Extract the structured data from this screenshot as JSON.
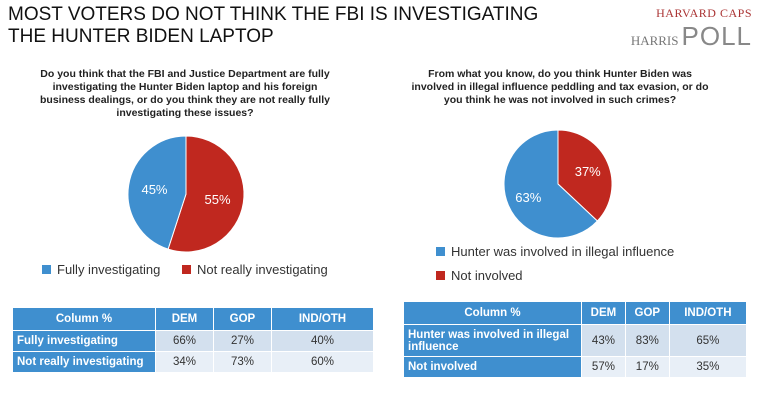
{
  "title": "MOST VOTERS DO NOT THINK THE FBI IS INVESTIGATING THE HUNTER BIDEN LAPTOP",
  "logo": {
    "line1": "HARVARD CAPS",
    "line2": "HARRIS",
    "line3": "POLL"
  },
  "colors": {
    "blue": "#3f8fcf",
    "red": "#c0281f"
  },
  "chart_data": [
    {
      "type": "pie",
      "title": "Do you think that the FBI and Justice Department are fully investigating the Hunter Biden laptop and his foreign business dealings, or do you think they are not really fully investigating these issues?",
      "legend_position": "bottom",
      "slices": [
        {
          "label": "Fully investigating",
          "value": 45,
          "text": "45%",
          "color": "#3f8fcf"
        },
        {
          "label": "Not really investigating",
          "value": 55,
          "text": "55%",
          "color": "#c0281f"
        }
      ]
    },
    {
      "type": "pie",
      "title": "From what you know, do you think Hunter Biden was involved in illegal influence peddling and tax evasion, or do you think he was not involved in such crimes?",
      "legend_position": "bottom",
      "slices": [
        {
          "label": "Hunter was involved in illegal influence",
          "value": 63,
          "text": "63%",
          "color": "#3f8fcf"
        },
        {
          "label": "Not involved",
          "value": 37,
          "text": "37%",
          "color": "#c0281f"
        }
      ]
    },
    {
      "type": "table",
      "columns": [
        "Column %",
        "DEM",
        "GOP",
        "IND/OTH"
      ],
      "rows": [
        [
          "Fully investigating",
          "66%",
          "27%",
          "40%"
        ],
        [
          "Not really investigating",
          "34%",
          "73%",
          "60%"
        ]
      ]
    },
    {
      "type": "table",
      "columns": [
        "Column %",
        "DEM",
        "GOP",
        "IND/OTH"
      ],
      "rows": [
        [
          "Hunter was involved in illegal influence",
          "43%",
          "83%",
          "65%"
        ],
        [
          "Not involved",
          "57%",
          "17%",
          "35%"
        ]
      ]
    }
  ]
}
